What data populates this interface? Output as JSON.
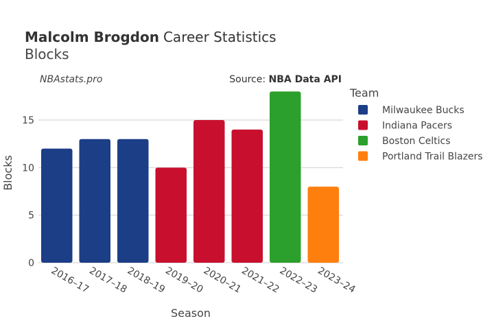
{
  "header": {
    "player": "Malcolm Brogdon",
    "title_rest": "Career Statistics",
    "subtitle": "Blocks",
    "credit": "NBAstats.pro",
    "source_prefix": "Source: ",
    "source_name": "NBA Data API"
  },
  "chart_data": {
    "type": "bar",
    "title": "Malcolm Brogdon Career Statistics",
    "subtitle": "Blocks",
    "xlabel": "Season",
    "ylabel": "Blocks",
    "ylim": [
      0,
      18.8
    ],
    "yticks": [
      0,
      5,
      10,
      15
    ],
    "grid": true,
    "legend_title": "Team",
    "legend_position": "right",
    "categories": [
      "2016–17",
      "2017–18",
      "2018–19",
      "2019–20",
      "2020–21",
      "2021–22",
      "2022–23",
      "2023–24"
    ],
    "values": [
      12,
      13,
      13,
      10,
      15,
      14,
      18,
      8
    ],
    "teams": [
      "Milwaukee Bucks",
      "Milwaukee Bucks",
      "Milwaukee Bucks",
      "Indiana Pacers",
      "Indiana Pacers",
      "Indiana Pacers",
      "Boston Celtics",
      "Portland Trail Blazers"
    ],
    "legend": [
      {
        "name": "Milwaukee Bucks",
        "color": "#1b3e87"
      },
      {
        "name": "Indiana Pacers",
        "color": "#c8102e"
      },
      {
        "name": "Boston Celtics",
        "color": "#2ca02c"
      },
      {
        "name": "Portland Trail Blazers",
        "color": "#ff7f0e"
      }
    ]
  }
}
